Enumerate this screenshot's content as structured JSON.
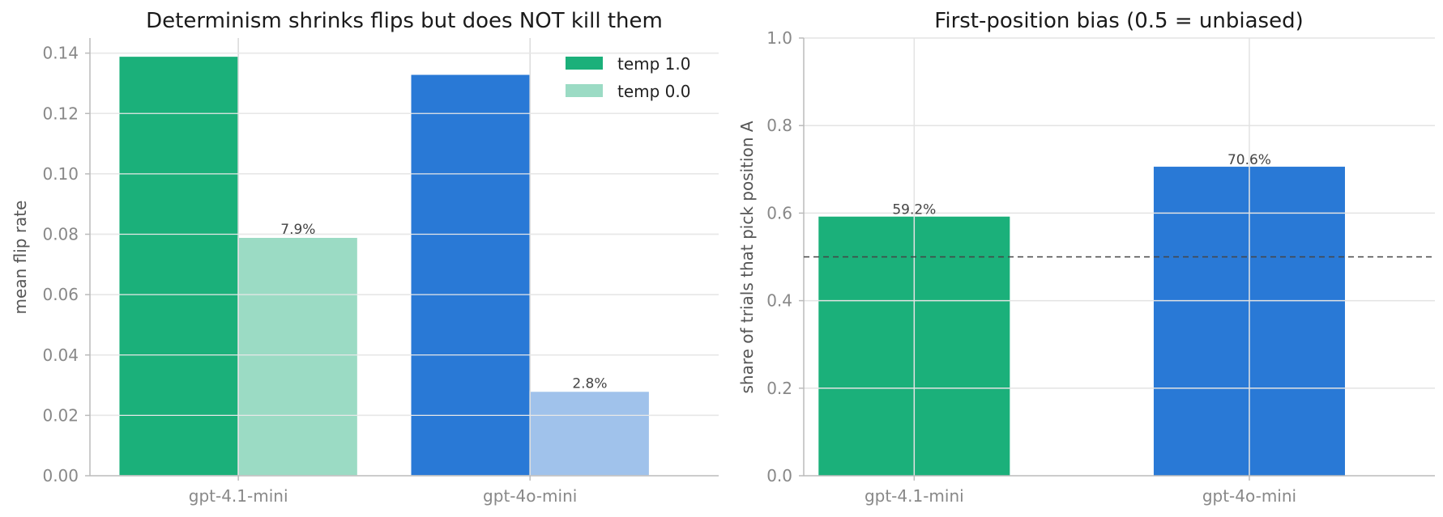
{
  "chart_data": [
    {
      "type": "bar",
      "title": "Determinism shrinks flips but does NOT kill them",
      "xlabel": "",
      "ylabel": "mean flip rate",
      "ylim": [
        0,
        0.145
      ],
      "yticks": [
        "0.00",
        "0.02",
        "0.04",
        "0.06",
        "0.08",
        "0.10",
        "0.12",
        "0.14"
      ],
      "categories": [
        "gpt-4.1-mini",
        "gpt-4o-mini"
      ],
      "series": [
        {
          "name": "temp 1.0",
          "values": [
            0.139,
            0.133
          ],
          "colors": [
            "#1bb07a",
            "#2979d6"
          ]
        },
        {
          "name": "temp 0.0",
          "values": [
            0.079,
            0.028
          ],
          "colors": [
            "#9bdbc4",
            "#a0c2eb"
          ],
          "labels": [
            "7.9%",
            "2.8%"
          ]
        }
      ],
      "legend": {
        "placement": "top-right",
        "colors": [
          "#1bb07a",
          "#9bdbc4"
        ]
      },
      "grid": true
    },
    {
      "type": "bar",
      "title": "First-position bias (0.5 = unbiased)",
      "xlabel": "",
      "ylabel": "share of trials that pick position A",
      "ylim": [
        0,
        1.0
      ],
      "yticks": [
        "0.0",
        "0.2",
        "0.4",
        "0.6",
        "0.8",
        "1.0"
      ],
      "categories": [
        "gpt-4.1-mini",
        "gpt-4o-mini"
      ],
      "values": [
        0.592,
        0.706
      ],
      "labels": [
        "59.2%",
        "70.6%"
      ],
      "colors": [
        "#1bb07a",
        "#2979d6"
      ],
      "reference_line": 0.5,
      "grid": true
    }
  ]
}
